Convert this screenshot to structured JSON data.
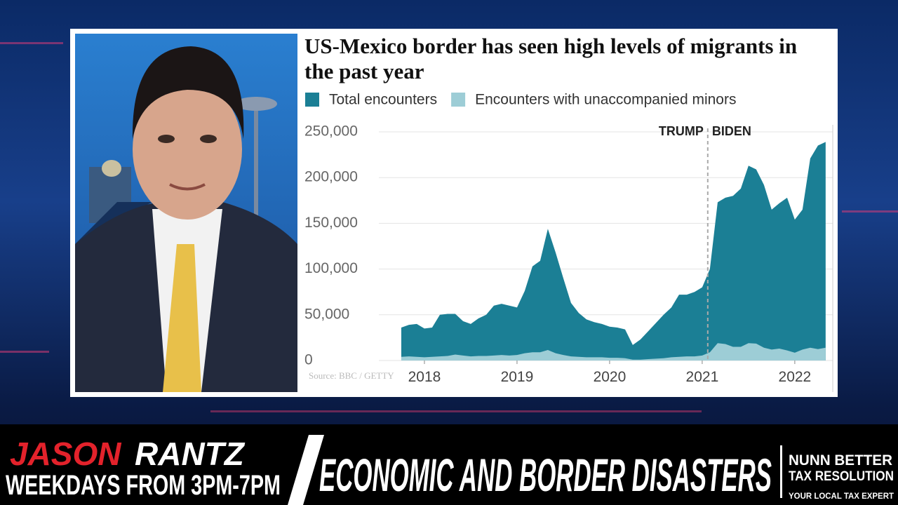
{
  "chart_data": {
    "type": "area",
    "title": "US-Mexico border has seen high levels of migrants in the past year",
    "source": "Source: BBC / GETTY",
    "x": [
      2017.75,
      2017.833,
      2017.917,
      2018.0,
      2018.083,
      2018.167,
      2018.25,
      2018.333,
      2018.417,
      2018.5,
      2018.583,
      2018.667,
      2018.75,
      2018.833,
      2018.917,
      2019.0,
      2019.083,
      2019.167,
      2019.25,
      2019.333,
      2019.417,
      2019.5,
      2019.583,
      2019.667,
      2019.75,
      2019.833,
      2019.917,
      2020.0,
      2020.083,
      2020.167,
      2020.25,
      2020.333,
      2020.417,
      2020.5,
      2020.583,
      2020.667,
      2020.75,
      2020.833,
      2020.917,
      2021.0,
      2021.083,
      2021.167,
      2021.25,
      2021.333,
      2021.417,
      2021.5,
      2021.583,
      2021.667,
      2021.75,
      2021.833,
      2021.917,
      2022.0,
      2022.083,
      2022.167,
      2022.25,
      2022.333
    ],
    "series": [
      {
        "name": "Total encounters",
        "color": "#1b7f95",
        "values": [
          36000,
          39000,
          40000,
          35000,
          36000,
          50000,
          51000,
          51000,
          43000,
          40000,
          46000,
          50000,
          60000,
          62000,
          60000,
          58000,
          76000,
          103000,
          109000,
          144000,
          118000,
          90000,
          63000,
          52000,
          45000,
          42000,
          40000,
          37000,
          36000,
          34000,
          17000,
          23000,
          32000,
          41000,
          50000,
          58000,
          72000,
          72000,
          75000,
          80000,
          100000,
          173000,
          178000,
          180000,
          188000,
          213000,
          209000,
          192000,
          165000,
          172000,
          178000,
          154000,
          165000,
          221000,
          235000,
          239000
        ]
      },
      {
        "name": "Encounters with unaccompanied minors",
        "color": "#9dcdd6",
        "values": [
          4000,
          4500,
          4000,
          3500,
          4000,
          4500,
          5000,
          6500,
          5500,
          4500,
          5000,
          5000,
          5500,
          6000,
          5500,
          6000,
          8000,
          9000,
          9000,
          11500,
          8000,
          6000,
          4500,
          4000,
          3500,
          3500,
          3500,
          3000,
          3000,
          2500,
          1000,
          1000,
          1500,
          2000,
          2500,
          3500,
          4000,
          4500,
          4500,
          5500,
          9000,
          19000,
          18000,
          15000,
          15000,
          19000,
          18500,
          14000,
          12000,
          13000,
          11000,
          8500,
          12000,
          14000,
          12500,
          14000
        ]
      }
    ],
    "xlim": [
      2016.75,
      2022.41
    ],
    "xticks": [
      2018,
      2019,
      2020,
      2021,
      2022
    ],
    "ylim": [
      0,
      250000
    ],
    "yticks": [
      0,
      {
        "value": 50000,
        "label": "50,000"
      },
      {
        "value": 100000,
        "label": "100,000"
      },
      {
        "value": 150000,
        "label": "150,000"
      },
      {
        "value": 200000,
        "label": "200,000"
      },
      {
        "value": 250000,
        "label": "250,000"
      }
    ],
    "grid": true,
    "divider": {
      "x": 2021.06,
      "labels": [
        "TRUMP",
        "BIDEN"
      ]
    }
  },
  "banner": {
    "show_name_1": "JASON",
    "show_name_2": "RANTZ",
    "schedule": "WEEKDAYS FROM 3PM-7PM",
    "headline": "ECONOMIC AND BORDER DISASTERS",
    "sponsor": {
      "line1": "NUNN BETTER",
      "line2": "TAX RESOLUTION",
      "tagline": "YOUR LOCAL TAX EXPERT"
    }
  }
}
